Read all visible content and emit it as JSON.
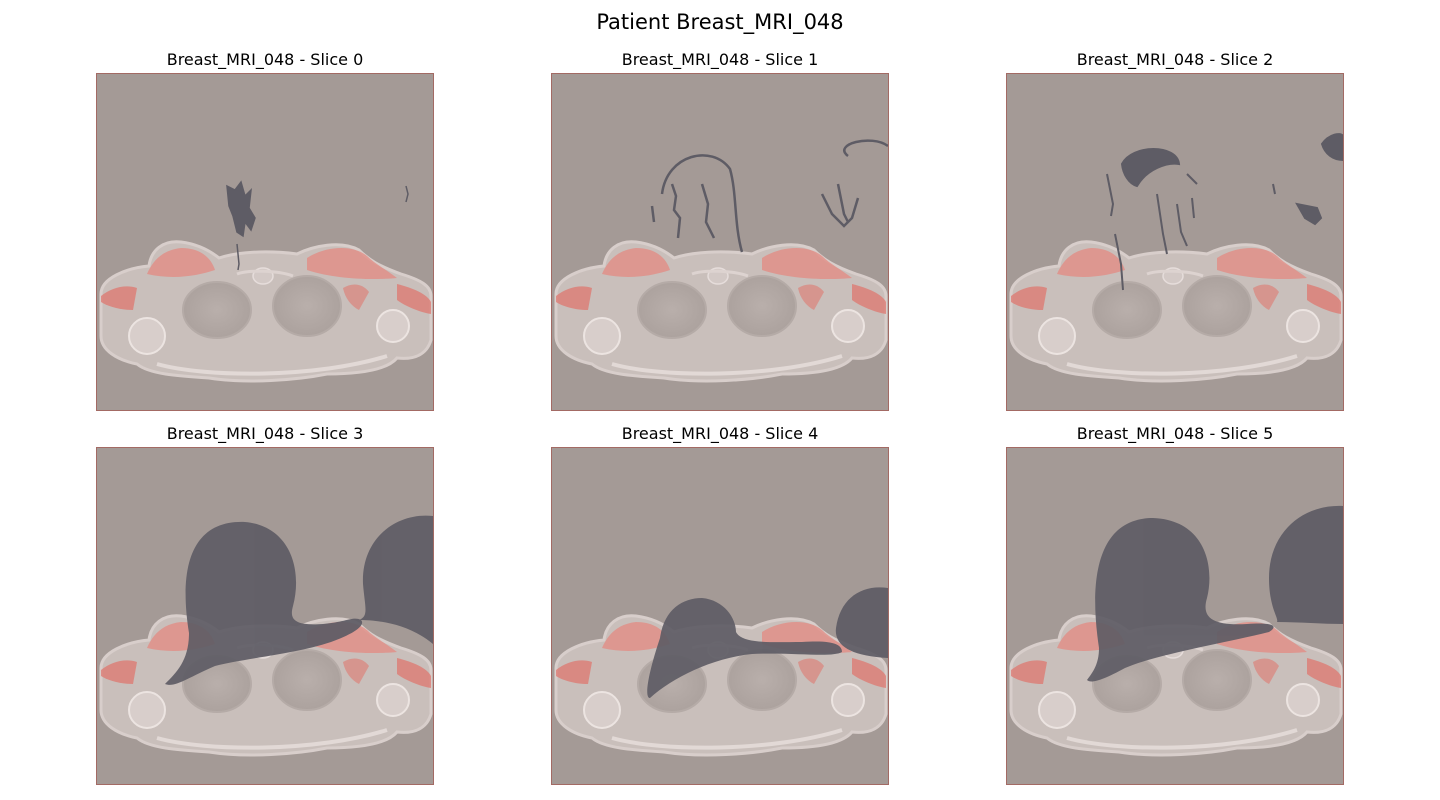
{
  "figure": {
    "title": "Patient Breast_MRI_048",
    "panels": [
      {
        "title": "Breast_MRI_048 - Slice 0"
      },
      {
        "title": "Breast_MRI_048 - Slice 1"
      },
      {
        "title": "Breast_MRI_048 - Slice 2"
      },
      {
        "title": "Breast_MRI_048 - Slice 3"
      },
      {
        "title": "Breast_MRI_048 - Slice 4"
      },
      {
        "title": "Breast_MRI_048 - Slice 5"
      }
    ]
  },
  "colors": {
    "background": "#a49a96",
    "body": "#c9bfbb",
    "highlight_red": "#e0726a",
    "mask_dark": "#5e5c65",
    "edge": "#a36a64"
  }
}
